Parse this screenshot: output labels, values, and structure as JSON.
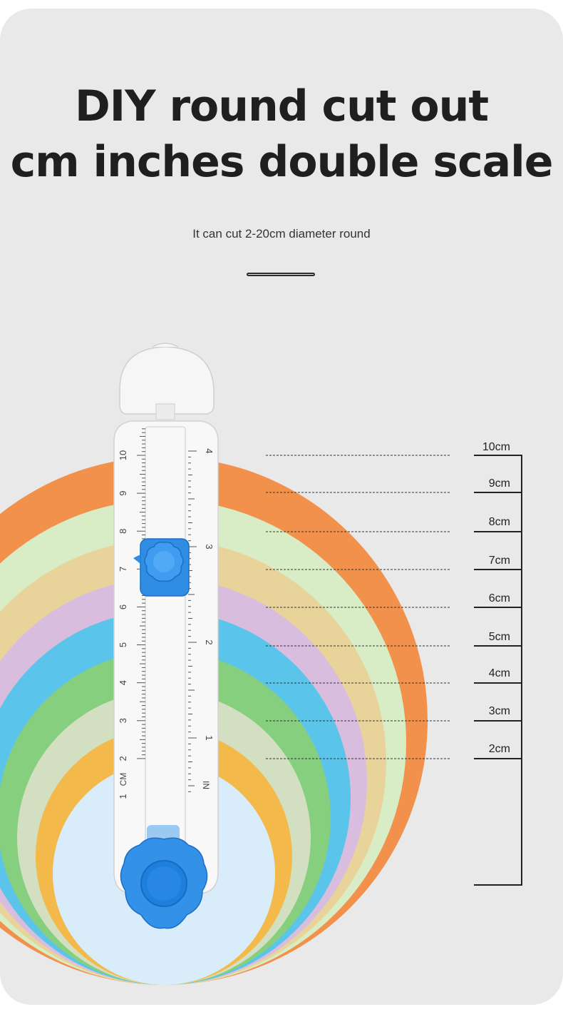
{
  "title_line1": "DIY round cut out",
  "title_line2": "cm inches double scale",
  "subtitle": "It can cut 2-20cm diameter round",
  "colors": {
    "background": "#e9e9e9",
    "text": "#1f1f1f",
    "ring_colors": [
      "#f2914b",
      "#d8ecc5",
      "#e8d49a",
      "#d8bddf",
      "#5bc4ea",
      "#86cf7e",
      "#d2e0c1",
      "#f3ba4b",
      "#d8ecfa"
    ],
    "knob": "#2f8de4"
  },
  "scale": {
    "labels": [
      "10cm",
      "9cm",
      "8cm",
      "7cm",
      "6cm",
      "5cm",
      "4cm",
      "3cm",
      "2cm"
    ]
  },
  "ruler": {
    "cm_unit": "CM",
    "in_unit": "IN",
    "cm_numbers": [
      "1",
      "2",
      "3",
      "4",
      "5",
      "6",
      "7",
      "8",
      "9",
      "10"
    ],
    "in_numbers": [
      "1",
      "2",
      "3",
      "4"
    ]
  }
}
